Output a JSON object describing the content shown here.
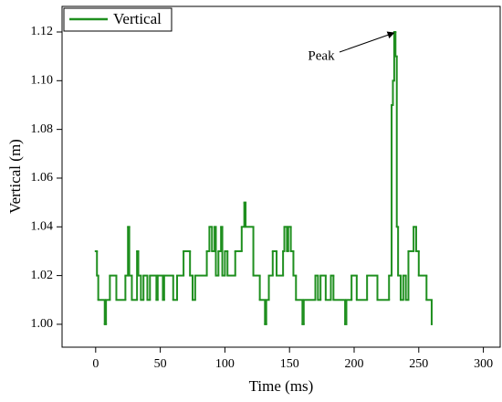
{
  "chart_data": {
    "type": "line",
    "step": "post",
    "xlabel": "Time (ms)",
    "ylabel": "Vertical (m)",
    "legend": "upper left",
    "annotations": [
      {
        "text": "Peak"
      }
    ],
    "xlim": [
      -26,
      313
    ],
    "ylim": [
      0.9906,
      1.1305
    ],
    "xticks": [
      0,
      50,
      100,
      150,
      200,
      250,
      300
    ],
    "yticks": [
      {
        "value": 1,
        "label": "1.00"
      },
      1.02,
      1.04,
      1.06,
      1.08,
      {
        "value": 1.1,
        "label": "1.10"
      },
      1.12
    ],
    "x": [
      0,
      1,
      2,
      7,
      8,
      11,
      16,
      23,
      25,
      26,
      28,
      32,
      33,
      35,
      37,
      40,
      42,
      47,
      48,
      52,
      53,
      60,
      63,
      68,
      73,
      75,
      77,
      86,
      88,
      90,
      92,
      93,
      95,
      97,
      98,
      100,
      102,
      108,
      113,
      115,
      116,
      122,
      127,
      131,
      132,
      134,
      137,
      140,
      145,
      146,
      148,
      149,
      151,
      153,
      155,
      160,
      161,
      170,
      172,
      174,
      178,
      182,
      184,
      193,
      194,
      198,
      202,
      210,
      218,
      227,
      229,
      230,
      231,
      232,
      233,
      234,
      236,
      238,
      240,
      242,
      246,
      248,
      250,
      256,
      260
    ],
    "series": [
      {
        "name": "Vertical",
        "color": "#1f8f1f",
        "values": [
          1.03,
          1.02,
          1.01,
          1.0,
          1.01,
          1.02,
          1.01,
          1.02,
          1.04,
          1.02,
          1.01,
          1.03,
          1.02,
          1.01,
          1.02,
          1.01,
          1.02,
          1.01,
          1.02,
          1.01,
          1.02,
          1.01,
          1.02,
          1.03,
          1.02,
          1.01,
          1.02,
          1.03,
          1.04,
          1.03,
          1.04,
          1.02,
          1.03,
          1.04,
          1.02,
          1.03,
          1.02,
          1.03,
          1.04,
          1.05,
          1.04,
          1.02,
          1.01,
          1.0,
          1.01,
          1.02,
          1.03,
          1.02,
          1.03,
          1.04,
          1.03,
          1.04,
          1.03,
          1.02,
          1.01,
          1.0,
          1.01,
          1.02,
          1.01,
          1.02,
          1.01,
          1.02,
          1.01,
          1.0,
          1.01,
          1.02,
          1.01,
          1.02,
          1.01,
          1.02,
          1.09,
          1.1,
          1.12,
          1.11,
          1.04,
          1.02,
          1.01,
          1.02,
          1.01,
          1.03,
          1.04,
          1.03,
          1.02,
          1.01,
          1.0
        ]
      }
    ]
  }
}
